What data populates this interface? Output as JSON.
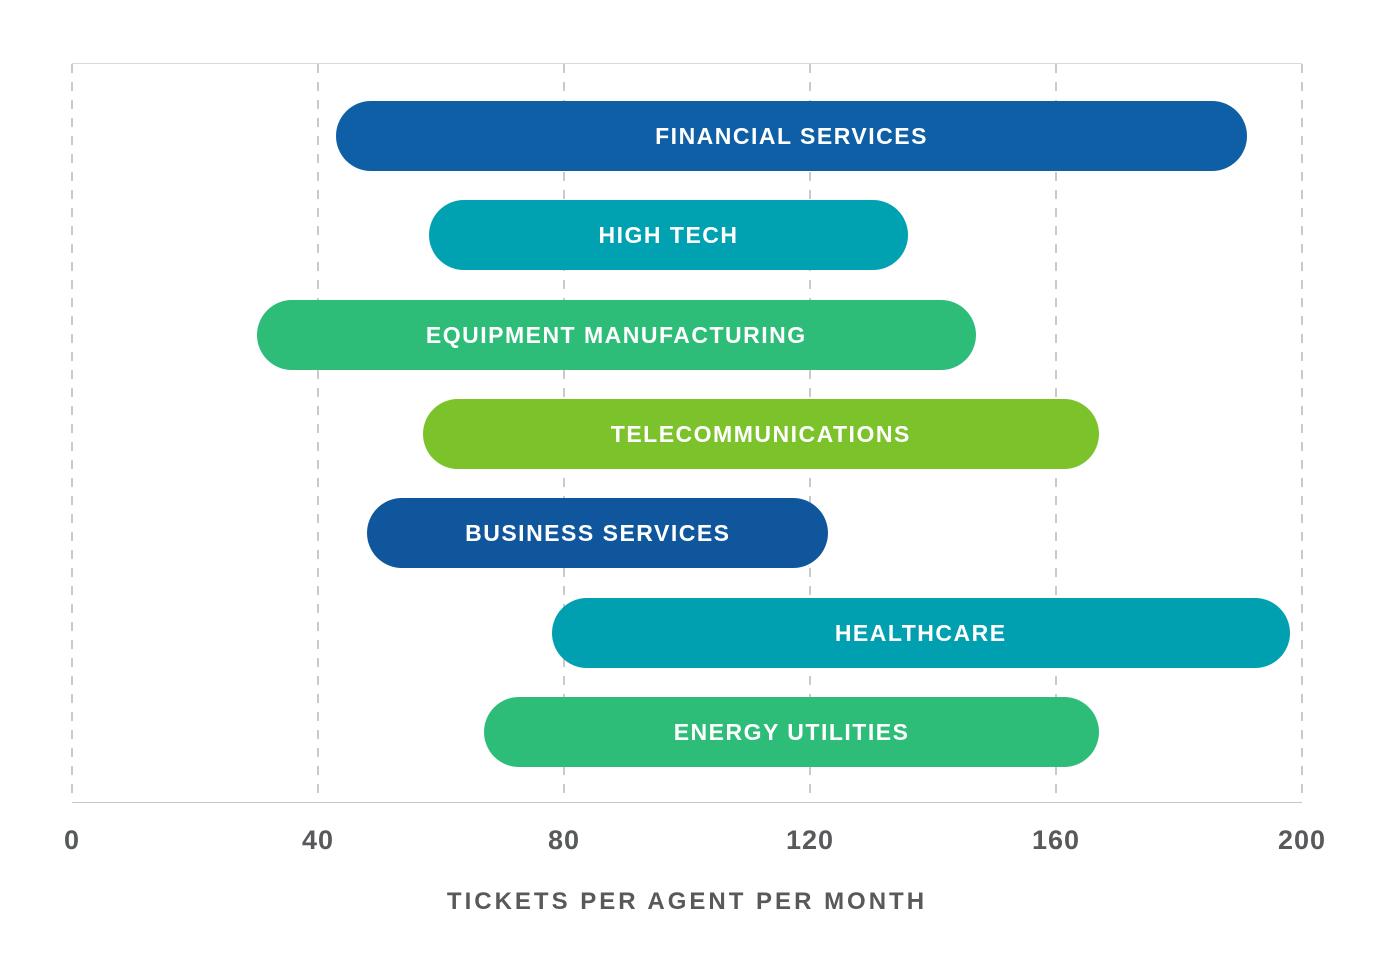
{
  "chart_data": {
    "type": "bar",
    "orientation": "horizontal",
    "subtype": "range",
    "title": "",
    "xlabel": "TICKETS PER AGENT PER MONTH",
    "ylabel": "",
    "xlim": [
      0,
      200
    ],
    "xticks": [
      "0",
      "40",
      "80",
      "120",
      "160",
      "200"
    ],
    "xtick_values": [
      0,
      40,
      80,
      120,
      160,
      200
    ],
    "grid": "vertical-dashed",
    "legend": "none",
    "bars": [
      {
        "label": "FINANCIAL SERVICES",
        "min": 43,
        "max": 191,
        "color": "#0e5fa6"
      },
      {
        "label": "HIGH TECH",
        "min": 58,
        "max": 136,
        "color": "#00a2b2"
      },
      {
        "label": "EQUIPMENT MANUFACTURING",
        "min": 30,
        "max": 147,
        "color": "#2dbd78"
      },
      {
        "label": "TELECOMMUNICATIONS",
        "min": 57,
        "max": 167,
        "color": "#7cc32b"
      },
      {
        "label": "BUSINESS SERVICES",
        "min": 48,
        "max": 123,
        "color": "#10569d"
      },
      {
        "label": "HEALTHCARE",
        "min": 78,
        "max": 198,
        "color": "#00a0b0"
      },
      {
        "label": "ENERGY UTILITIES",
        "min": 67,
        "max": 167,
        "color": "#2dbd78"
      }
    ]
  },
  "style": {
    "bar_text_color": "#ffffff",
    "axis_text_color": "#58595b",
    "gridline_color": "#c9cacb",
    "background_color": "#ffffff"
  }
}
